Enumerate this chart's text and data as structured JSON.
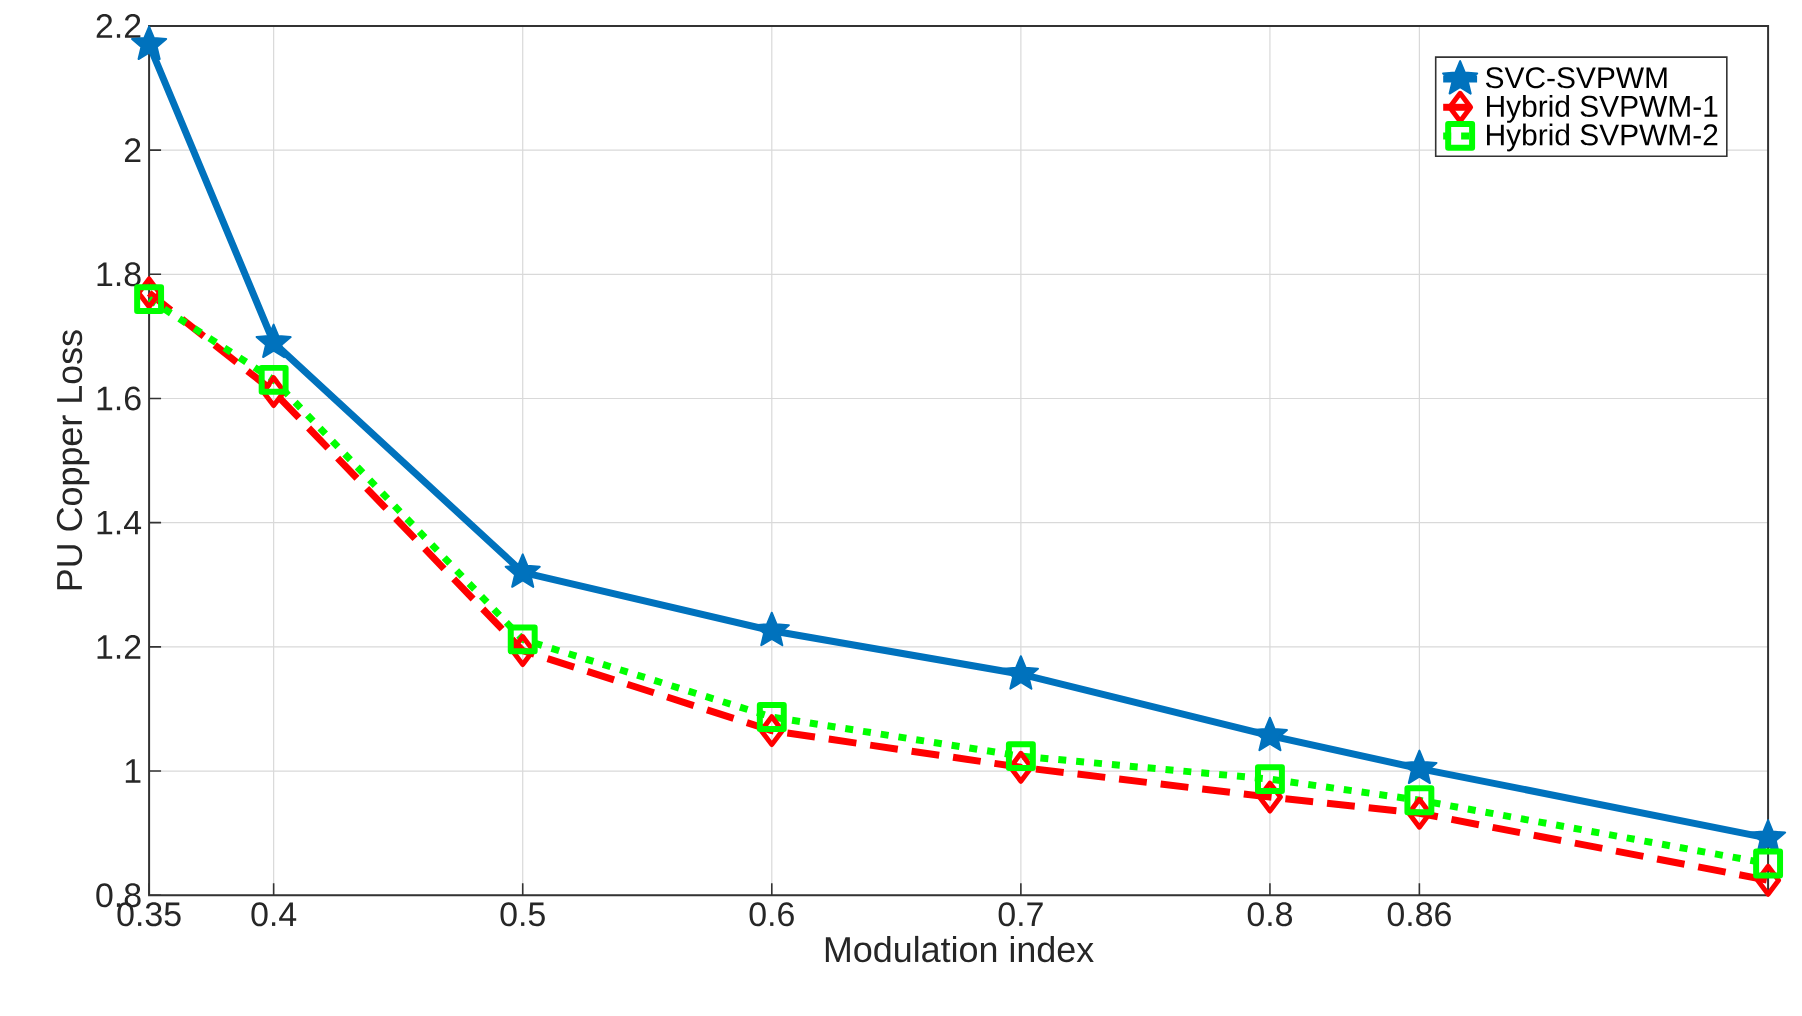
{
  "chart_data": {
    "type": "line",
    "xlabel": "Modulation index",
    "ylabel": "PU Copper Loss",
    "x": [
      0.35,
      0.4,
      0.5,
      0.6,
      0.7,
      0.8,
      0.86,
      1.0
    ],
    "xlim": [
      0.35,
      1.0
    ],
    "xticks": [
      0.35,
      0.4,
      0.5,
      0.6,
      0.7,
      0.8,
      0.86
    ],
    "ylim": [
      0.8,
      2.2
    ],
    "yticks": [
      0.8,
      1,
      1.2,
      1.4,
      1.6,
      1.8,
      2,
      2.2
    ],
    "grid": true,
    "legend": "top right",
    "series": [
      {
        "name": "SVC-SVPWM",
        "color": "#0072bd",
        "marker": "star",
        "line_style": "solid",
        "values": [
          2.17,
          1.69,
          1.32,
          1.226,
          1.156,
          1.057,
          1.004,
          0.892
        ]
      },
      {
        "name": "Hybrid SVPWM-1",
        "color": "#ff0000",
        "marker": "diamond",
        "line_style": "dashed",
        "values": [
          1.77,
          1.611,
          1.194,
          1.065,
          1.006,
          0.958,
          0.932,
          0.824
        ]
      },
      {
        "name": "Hybrid SVPWM-2",
        "color": "#00ff00",
        "marker": "square",
        "line_style": "dotted",
        "values": [
          1.76,
          1.63,
          1.212,
          1.087,
          1.024,
          0.987,
          0.953,
          0.851
        ]
      }
    ]
  }
}
